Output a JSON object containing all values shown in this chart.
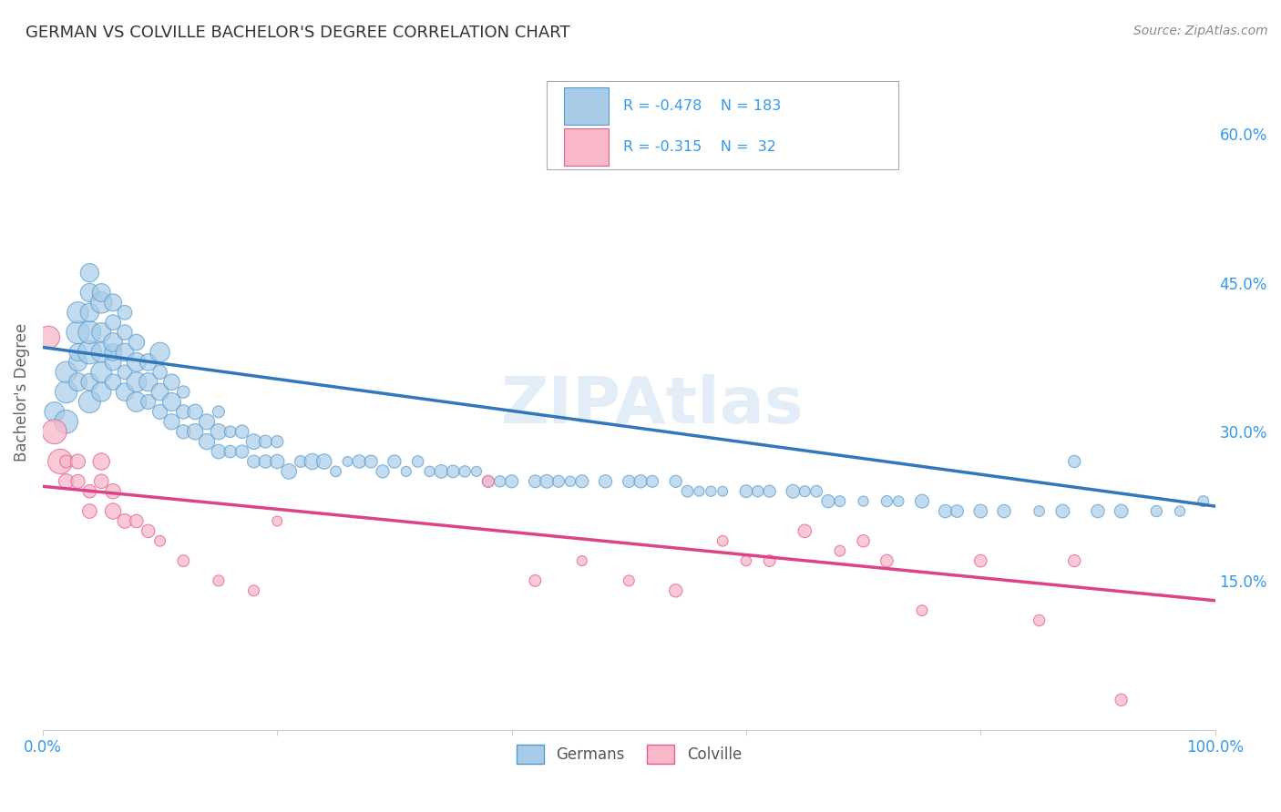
{
  "title": "GERMAN VS COLVILLE BACHELOR'S DEGREE CORRELATION CHART",
  "source": "Source: ZipAtlas.com",
  "ylabel": "Bachelor's Degree",
  "watermark": "ZIPAtlas",
  "legend_blue_r": "R = -0.478",
  "legend_blue_n": "N = 183",
  "legend_pink_r": "R = -0.315",
  "legend_pink_n": "N =  32",
  "legend_blue_label": "Germans",
  "legend_pink_label": "Colville",
  "blue_color": "#a8cce8",
  "pink_color": "#f8b8c8",
  "blue_edge_color": "#5599cc",
  "pink_edge_color": "#e06090",
  "blue_line_color": "#3377bb",
  "pink_line_color": "#dd4488",
  "xlim": [
    0.0,
    1.0
  ],
  "ylim": [
    0.0,
    0.68
  ],
  "xticks": [
    0.0,
    0.2,
    0.4,
    0.6,
    0.8,
    1.0
  ],
  "xtick_labels": [
    "0.0%",
    "",
    "",
    "",
    "",
    "100.0%"
  ],
  "yticks_right": [
    0.15,
    0.3,
    0.45,
    0.6
  ],
  "ytick_right_labels": [
    "15.0%",
    "30.0%",
    "45.0%",
    "60.0%"
  ],
  "blue_scatter_x": [
    0.01,
    0.02,
    0.02,
    0.02,
    0.03,
    0.03,
    0.03,
    0.03,
    0.03,
    0.04,
    0.04,
    0.04,
    0.04,
    0.04,
    0.04,
    0.04,
    0.05,
    0.05,
    0.05,
    0.05,
    0.05,
    0.05,
    0.06,
    0.06,
    0.06,
    0.06,
    0.06,
    0.06,
    0.07,
    0.07,
    0.07,
    0.07,
    0.07,
    0.08,
    0.08,
    0.08,
    0.08,
    0.09,
    0.09,
    0.09,
    0.1,
    0.1,
    0.1,
    0.1,
    0.11,
    0.11,
    0.11,
    0.12,
    0.12,
    0.12,
    0.13,
    0.13,
    0.14,
    0.14,
    0.15,
    0.15,
    0.15,
    0.16,
    0.16,
    0.17,
    0.17,
    0.18,
    0.18,
    0.19,
    0.19,
    0.2,
    0.2,
    0.21,
    0.22,
    0.23,
    0.24,
    0.25,
    0.26,
    0.27,
    0.28,
    0.29,
    0.3,
    0.31,
    0.32,
    0.33,
    0.34,
    0.35,
    0.36,
    0.37,
    0.38,
    0.39,
    0.4,
    0.42,
    0.43,
    0.44,
    0.45,
    0.46,
    0.48,
    0.5,
    0.51,
    0.52,
    0.54,
    0.55,
    0.56,
    0.57,
    0.58,
    0.6,
    0.61,
    0.62,
    0.64,
    0.65,
    0.66,
    0.67,
    0.68,
    0.7,
    0.72,
    0.73,
    0.75,
    0.77,
    0.78,
    0.8,
    0.82,
    0.85,
    0.87,
    0.88,
    0.9,
    0.92,
    0.95,
    0.97,
    0.99
  ],
  "blue_scatter_y": [
    0.32,
    0.31,
    0.34,
    0.36,
    0.35,
    0.37,
    0.38,
    0.4,
    0.42,
    0.33,
    0.35,
    0.38,
    0.4,
    0.42,
    0.44,
    0.46,
    0.34,
    0.36,
    0.38,
    0.4,
    0.43,
    0.44,
    0.35,
    0.37,
    0.38,
    0.39,
    0.41,
    0.43,
    0.34,
    0.36,
    0.38,
    0.4,
    0.42,
    0.33,
    0.35,
    0.37,
    0.39,
    0.33,
    0.35,
    0.37,
    0.32,
    0.34,
    0.36,
    0.38,
    0.31,
    0.33,
    0.35,
    0.3,
    0.32,
    0.34,
    0.3,
    0.32,
    0.29,
    0.31,
    0.28,
    0.3,
    0.32,
    0.28,
    0.3,
    0.28,
    0.3,
    0.27,
    0.29,
    0.27,
    0.29,
    0.27,
    0.29,
    0.26,
    0.27,
    0.27,
    0.27,
    0.26,
    0.27,
    0.27,
    0.27,
    0.26,
    0.27,
    0.26,
    0.27,
    0.26,
    0.26,
    0.26,
    0.26,
    0.26,
    0.25,
    0.25,
    0.25,
    0.25,
    0.25,
    0.25,
    0.25,
    0.25,
    0.25,
    0.25,
    0.25,
    0.25,
    0.25,
    0.24,
    0.24,
    0.24,
    0.24,
    0.24,
    0.24,
    0.24,
    0.24,
    0.24,
    0.24,
    0.23,
    0.23,
    0.23,
    0.23,
    0.23,
    0.23,
    0.22,
    0.22,
    0.22,
    0.22,
    0.22,
    0.22,
    0.27,
    0.22,
    0.22,
    0.22,
    0.22,
    0.23
  ],
  "blue_sizes_base": 120,
  "pink_scatter_x": [
    0.005,
    0.01,
    0.015,
    0.02,
    0.02,
    0.03,
    0.03,
    0.04,
    0.04,
    0.05,
    0.05,
    0.06,
    0.06,
    0.07,
    0.08,
    0.09,
    0.1,
    0.12,
    0.15,
    0.18,
    0.2,
    0.38,
    0.42,
    0.46,
    0.5,
    0.54,
    0.58,
    0.6,
    0.62,
    0.65,
    0.68,
    0.7,
    0.72,
    0.75,
    0.8,
    0.85,
    0.88,
    0.92
  ],
  "pink_scatter_y": [
    0.395,
    0.3,
    0.27,
    0.27,
    0.25,
    0.27,
    0.25,
    0.24,
    0.22,
    0.27,
    0.25,
    0.24,
    0.22,
    0.21,
    0.21,
    0.2,
    0.19,
    0.17,
    0.15,
    0.14,
    0.21,
    0.25,
    0.15,
    0.17,
    0.15,
    0.14,
    0.19,
    0.17,
    0.17,
    0.2,
    0.18,
    0.19,
    0.17,
    0.12,
    0.17,
    0.11,
    0.17,
    0.03
  ],
  "pink_sizes_base": 80,
  "blue_trendline_x": [
    0.0,
    1.0
  ],
  "blue_trendline_y": [
    0.385,
    0.225
  ],
  "pink_trendline_x": [
    0.0,
    1.0
  ],
  "pink_trendline_y": [
    0.245,
    0.13
  ],
  "background_color": "#ffffff",
  "grid_color": "#cccccc",
  "title_color": "#333333",
  "axis_color": "#3399ee",
  "legend_text_color": "#333333",
  "watermark_color": "#c8ddf0",
  "watermark_alpha": 0.5
}
